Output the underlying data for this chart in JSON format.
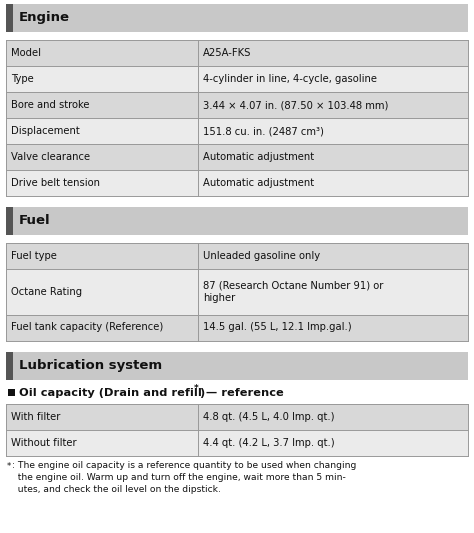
{
  "engine_section": "Engine",
  "engine_rows": [
    [
      "Model",
      "A25A-FKS"
    ],
    [
      "Type",
      "4-cylinder in line, 4-cycle, gasoline"
    ],
    [
      "Bore and stroke",
      "3.44 × 4.07 in. (87.50 × 103.48 mm)"
    ],
    [
      "Displacement",
      "151.8 cu. in. (2487 cm³)"
    ],
    [
      "Valve clearance",
      "Automatic adjustment"
    ],
    [
      "Drive belt tension",
      "Automatic adjustment"
    ]
  ],
  "fuel_section": "Fuel",
  "fuel_rows": [
    [
      "Fuel type",
      "Unleaded gasoline only"
    ],
    [
      "Octane Rating",
      "87 (Research Octane Number 91) or\nhigher"
    ],
    [
      "Fuel tank capacity (Reference)",
      "14.5 gal. (55 L, 12.1 Imp.gal.)"
    ]
  ],
  "lub_section": "Lubrication system",
  "oil_subtitle_bold": "Oil capacity (Drain and refill — reference",
  "oil_subtitle_super": "*",
  "oil_subtitle_end": ")",
  "oil_rows": [
    [
      "With filter",
      "4.8 qt. (4.5 L, 4.0 Imp. qt.)"
    ],
    [
      "Without filter",
      "4.4 qt. (4.2 L, 3.7 Imp. qt.)"
    ]
  ],
  "footnote_super": "*",
  "footnote_text": ": The engine oil capacity is a reference quantity to be used when changing\n  the engine oil. Warm up and turn off the engine, wait more than 5 min-\n  utes, and check the oil level on the dipstick.",
  "bg_color": "#ffffff",
  "header_bg": "#c8c8c8",
  "row_bg_even": "#d8d8d8",
  "row_bg_odd": "#ebebeb",
  "border_color": "#999999",
  "accent_color": "#555555",
  "text_color": "#111111",
  "col_split": 0.415,
  "font_size": 7.2,
  "header_font_size": 9.5,
  "footnote_font_size": 6.6
}
